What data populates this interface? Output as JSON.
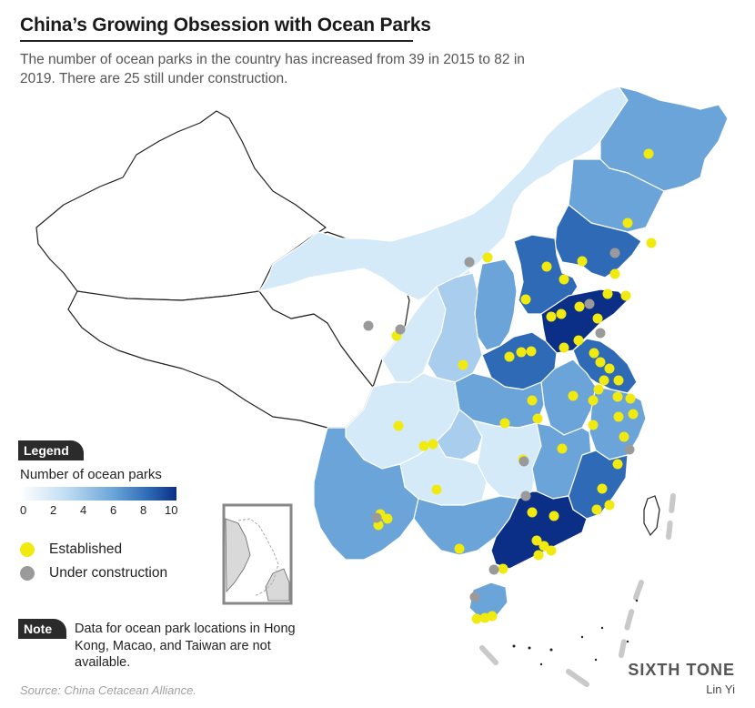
{
  "header": {
    "title": "China’s Growing Obsession with Ocean Parks",
    "subtitle": "The number of ocean parks in the country has increased from 39 in 2015 to 82 in 2019. There are 25 still under construction."
  },
  "legend": {
    "tag": "Legend",
    "caption": "Number of ocean parks",
    "scale_ticks": [
      "0",
      "2",
      "4",
      "6",
      "8",
      "10"
    ],
    "scale_colors": [
      "#ffffff",
      "#bfdcf2",
      "#6aa4d8",
      "#2e6ab5",
      "#0b2f86"
    ],
    "established_label": "Established",
    "established_color": "#f0ea10",
    "under_construction_label": "Under construction",
    "under_construction_color": "#9a9a9a"
  },
  "note": {
    "tag": "Note",
    "text": "Data for ocean park locations in Hong Kong, Macao, and Taiwan are not available."
  },
  "footer": {
    "source": "Source:  China Cetacean Alliance.",
    "brand": "SIXTH TONE",
    "author": "Lin Yi"
  },
  "colors": {
    "very_light": "#d4eaf9",
    "light": "#a9cdec",
    "medium": "#6aa4d8",
    "dark": "#2e6ab5",
    "darkest": "#0b2f86",
    "established": "#f0ea10",
    "under_construction": "#9a9a9a"
  }
}
